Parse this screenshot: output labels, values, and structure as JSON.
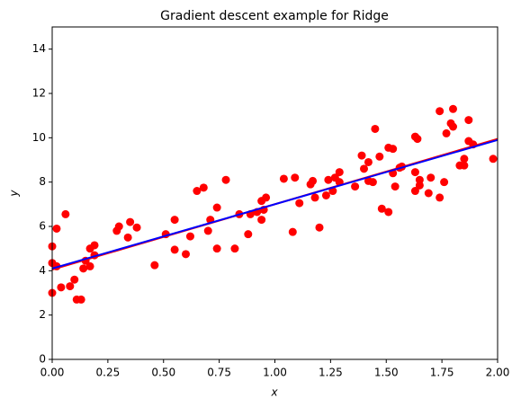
{
  "chart_data": {
    "type": "scatter",
    "title": "Gradient descent example for Ridge",
    "x_label": "x",
    "y_label": "y",
    "xlim": [
      0,
      2
    ],
    "ylim": [
      0,
      15
    ],
    "xticks": [
      {
        "value": 0,
        "label": "0.00"
      },
      {
        "value": 0.25,
        "label": "0.25"
      },
      {
        "value": 0.5,
        "label": "0.50"
      },
      {
        "value": 0.75,
        "label": "0.75"
      },
      {
        "value": 1,
        "label": "1.00"
      },
      {
        "value": 1.25,
        "label": "1.25"
      },
      {
        "value": 1.5,
        "label": "1.50"
      },
      {
        "value": 1.75,
        "label": "1.75"
      },
      {
        "value": 2,
        "label": "2.00"
      }
    ],
    "yticks": [
      0,
      2,
      4,
      6,
      8,
      10,
      12,
      14
    ],
    "series": [
      {
        "type": "scatter",
        "color": "#ff0000",
        "x": [
          0.0,
          0.0,
          0.0,
          0.02,
          0.02,
          0.04,
          0.06,
          0.08,
          0.1,
          0.11,
          0.13,
          0.14,
          0.15,
          0.17,
          0.17,
          0.19,
          0.19,
          0.29,
          0.3,
          0.34,
          0.35,
          0.38,
          0.46,
          0.51,
          0.55,
          0.55,
          0.6,
          0.62,
          0.65,
          0.68,
          0.7,
          0.71,
          0.74,
          0.74,
          0.78,
          0.82,
          0.84,
          0.88,
          0.89,
          0.92,
          0.94,
          0.95,
          0.94,
          0.96,
          1.04,
          1.08,
          1.09,
          1.11,
          1.16,
          1.17,
          1.18,
          1.2,
          1.23,
          1.24,
          1.26,
          1.27,
          1.29,
          1.29,
          1.36,
          1.39,
          1.4,
          1.42,
          1.42,
          1.44,
          1.45,
          1.47,
          1.48,
          1.51,
          1.51,
          1.53,
          1.53,
          1.54,
          1.56,
          1.57,
          1.63,
          1.63,
          1.64,
          1.63,
          1.65,
          1.65,
          1.69,
          1.7,
          1.74,
          1.74,
          1.76,
          1.77,
          1.79,
          1.8,
          1.8,
          1.83,
          1.85,
          1.85,
          1.87,
          1.87,
          1.89,
          1.98
        ],
        "values": [
          3.0,
          5.1,
          4.35,
          4.2,
          5.9,
          3.25,
          6.55,
          3.3,
          3.6,
          2.7,
          2.7,
          4.1,
          4.45,
          5.0,
          4.2,
          5.15,
          4.7,
          5.8,
          6.0,
          5.5,
          6.2,
          5.95,
          4.25,
          5.65,
          6.3,
          4.95,
          4.75,
          5.55,
          7.6,
          7.75,
          5.8,
          6.3,
          5.0,
          6.85,
          8.1,
          5.0,
          6.55,
          5.65,
          6.55,
          6.65,
          7.15,
          6.75,
          6.3,
          7.3,
          8.15,
          5.75,
          8.2,
          7.05,
          7.9,
          8.05,
          7.3,
          5.95,
          7.4,
          8.1,
          7.6,
          8.2,
          8.0,
          8.45,
          7.8,
          9.2,
          8.6,
          8.9,
          8.05,
          8.0,
          10.4,
          9.15,
          6.8,
          9.55,
          6.65,
          8.4,
          9.5,
          7.8,
          8.65,
          8.7,
          7.6,
          10.05,
          9.95,
          8.45,
          8.1,
          7.85,
          7.5,
          8.2,
          11.2,
          7.3,
          8.0,
          10.2,
          10.65,
          11.3,
          10.5,
          8.75,
          8.75,
          9.05,
          10.8,
          9.85,
          9.7,
          9.05
        ]
      },
      {
        "type": "line",
        "color": "#ff0000",
        "x": [
          0,
          2
        ],
        "values": [
          4.05,
          9.95
        ]
      },
      {
        "type": "line",
        "color": "#0000ff",
        "x": [
          0,
          2
        ],
        "values": [
          4.1,
          9.9
        ]
      }
    ]
  }
}
